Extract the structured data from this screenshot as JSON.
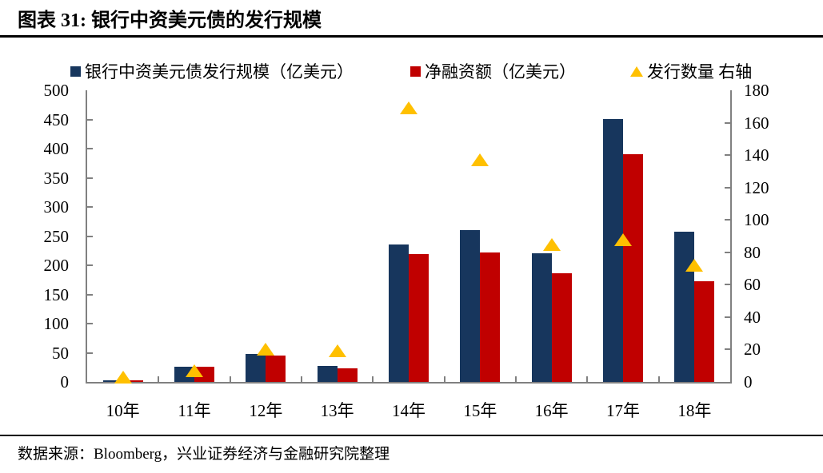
{
  "header": {
    "title": "图表 31:  银行中资美元债的发行规模"
  },
  "footer": {
    "source": "数据来源：Bloomberg，兴业证券经济与金融研究院整理"
  },
  "colors": {
    "bar_blue": "#17365D",
    "bar_red": "#C00000",
    "triangle_yellow": "#FFC000",
    "axis_gray": "#808080",
    "text_black": "#000000"
  },
  "chart_data": {
    "type": "bar",
    "title": "银行中资美元债的发行规模",
    "categories": [
      "10年",
      "11年",
      "12年",
      "13年",
      "14年",
      "15年",
      "16年",
      "17年",
      "18年"
    ],
    "series": [
      {
        "name": "银行中资美元债发行规模（亿美元）",
        "type": "bar",
        "axis": "left",
        "color": "#17365D",
        "values": [
          3,
          26,
          48,
          28,
          236,
          260,
          220,
          451,
          257
        ]
      },
      {
        "name": "净融资额（亿美元）",
        "type": "bar",
        "axis": "left",
        "color": "#C00000",
        "values": [
          3,
          26,
          45,
          23,
          219,
          222,
          186,
          390,
          173
        ]
      },
      {
        "name": "发行数量 右轴",
        "type": "triangle",
        "axis": "right",
        "color": "#FFC000",
        "values": [
          3,
          7,
          20,
          19,
          169,
          137,
          85,
          88,
          72
        ]
      }
    ],
    "left_axis": {
      "min": 0,
      "max": 500,
      "step": 50,
      "ticks": [
        "0",
        "50",
        "100",
        "150",
        "200",
        "250",
        "300",
        "350",
        "400",
        "450",
        "500"
      ]
    },
    "right_axis": {
      "min": 0,
      "max": 180,
      "step": 20,
      "ticks": [
        "0",
        "20",
        "40",
        "60",
        "80",
        "100",
        "120",
        "140",
        "160",
        "180"
      ]
    },
    "legend_position": "top",
    "grid": false
  }
}
